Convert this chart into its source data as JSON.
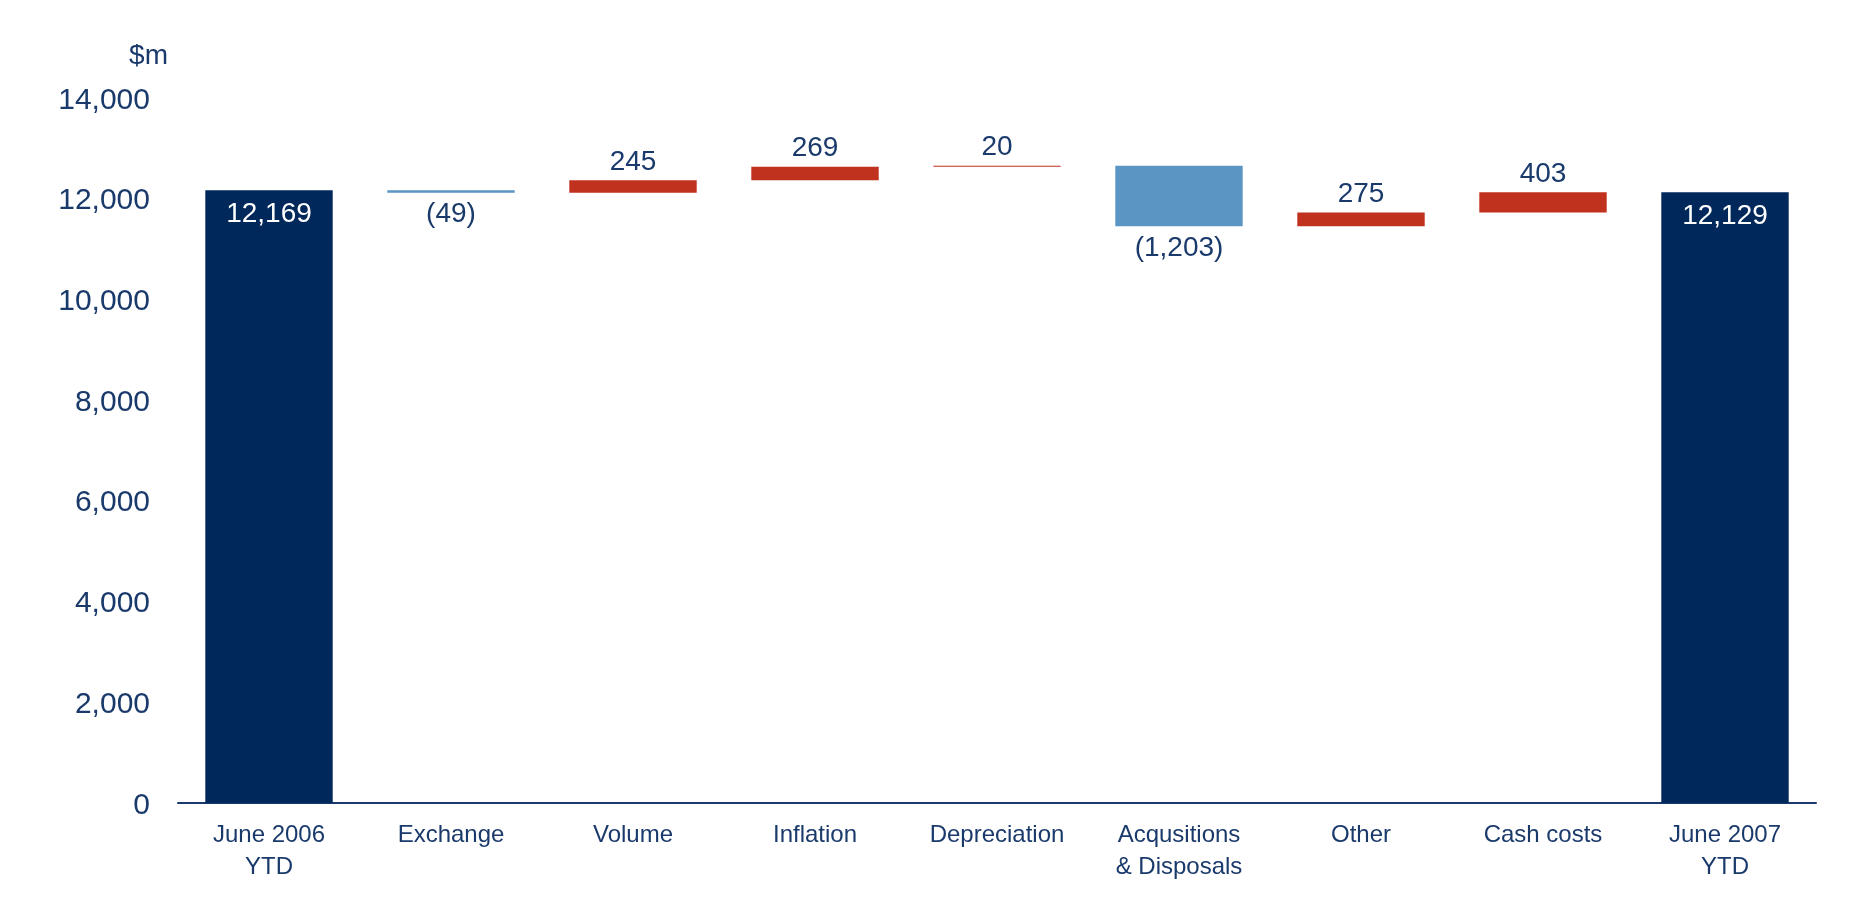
{
  "chart_data": {
    "type": "bar",
    "ylabel": "$m",
    "categories": [
      "June 2006\nYTD",
      "Exchange",
      "Volume",
      "Inflation",
      "Depreciation",
      "Acqusitions\n& Disposals",
      "Other",
      "Cash costs",
      "June 2007\nYTD"
    ],
    "values": [
      12169,
      -49,
      245,
      269,
      20,
      -1203,
      275,
      403,
      12129
    ],
    "base": [
      0,
      12169,
      12120,
      12365,
      12634,
      12654,
      11451,
      11726,
      0
    ],
    "colors": [
      "#00285a",
      "#5b95c4",
      "#c0311e",
      "#c0311e",
      "#c0311e",
      "#5b95c4",
      "#c0311e",
      "#c0311e",
      "#00285a"
    ],
    "value_labels": [
      "12,169",
      "(49)",
      "245",
      "269",
      "20",
      "(1,203)",
      "275",
      "403",
      "12,129"
    ],
    "ylim": [
      0,
      14000
    ],
    "yticks": [
      0,
      {
        "value": 2000,
        "label": "2,000"
      },
      {
        "value": 4000,
        "label": "4,000"
      },
      {
        "value": 6000,
        "label": "6,000"
      },
      {
        "value": 8000,
        "label": "8,000"
      },
      {
        "value": 10000,
        "label": "10,000"
      },
      {
        "value": 12000,
        "label": "12,000"
      },
      {
        "value": 14000,
        "label": "14,000"
      }
    ],
    "grid": false
  }
}
